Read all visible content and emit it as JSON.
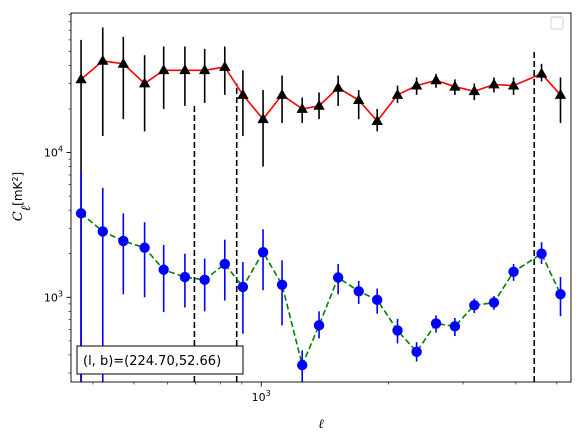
{
  "chart_data": {
    "type": "line",
    "xscale": "log",
    "yscale": "log",
    "xlim": [
      355,
      5400
    ],
    "ylim": [
      260,
      92000
    ],
    "xlabel": "ℓ",
    "ylabel_main": "C",
    "ylabel_sub": "ℓ",
    "ylabel_unit": "[mK",
    "ylabel_unit_sup": "2",
    "ylabel_unit_end": "]",
    "x_ticks": [
      {
        "value": 1000,
        "base": "10",
        "exp": "3"
      }
    ],
    "y_ticks": [
      {
        "value": 1000,
        "base": "10",
        "exp": "3"
      },
      {
        "value": 10000,
        "base": "10",
        "exp": "4"
      }
    ],
    "legend": {
      "placement": "top-right",
      "entries": []
    },
    "grid": false,
    "vlines": [
      {
        "x": 695,
        "ymin": 260,
        "ymax": 21000,
        "color": "#000000",
        "style": "dashed"
      },
      {
        "x": 875,
        "ymin": 260,
        "ymax": 30000,
        "color": "#000000",
        "style": "dashed"
      },
      {
        "x": 4420,
        "ymin": 260,
        "ymax": 52000,
        "color": "#000000",
        "style": "dashed"
      }
    ],
    "series": [
      {
        "line_color": "#ff0000",
        "line_style": "solid",
        "marker": "triangle",
        "marker_color": "#000000",
        "err_color": "#000000",
        "points": [
          {
            "x": 375,
            "y": 32000,
            "lo": 260,
            "hi": 60000
          },
          {
            "x": 422,
            "y": 43000,
            "lo": 13000,
            "hi": 73000
          },
          {
            "x": 472,
            "y": 41000,
            "lo": 17000,
            "hi": 63000
          },
          {
            "x": 530,
            "y": 30000,
            "lo": 14000,
            "hi": 47000
          },
          {
            "x": 588,
            "y": 37000,
            "lo": 20000,
            "hi": 54000
          },
          {
            "x": 660,
            "y": 37000,
            "lo": 21000,
            "hi": 54000
          },
          {
            "x": 735,
            "y": 37000,
            "lo": 22000,
            "hi": 52000
          },
          {
            "x": 820,
            "y": 39000,
            "lo": 25000,
            "hi": 54000
          },
          {
            "x": 905,
            "y": 25000,
            "lo": 13000,
            "hi": 37000
          },
          {
            "x": 1010,
            "y": 17000,
            "lo": 8000,
            "hi": 27000
          },
          {
            "x": 1120,
            "y": 25000,
            "lo": 16000,
            "hi": 34000
          },
          {
            "x": 1250,
            "y": 20000,
            "lo": 16000,
            "hi": 24000
          },
          {
            "x": 1370,
            "y": 21000,
            "lo": 17000,
            "hi": 26000
          },
          {
            "x": 1520,
            "y": 28000,
            "lo": 21000,
            "hi": 34000
          },
          {
            "x": 1700,
            "y": 23000,
            "lo": 17000,
            "hi": 27000
          },
          {
            "x": 1880,
            "y": 16500,
            "lo": 14000,
            "hi": 20000
          },
          {
            "x": 2100,
            "y": 25000,
            "lo": 22000,
            "hi": 29000
          },
          {
            "x": 2330,
            "y": 29000,
            "lo": 25000,
            "hi": 33000
          },
          {
            "x": 2590,
            "y": 31500,
            "lo": 28000,
            "hi": 35000
          },
          {
            "x": 2870,
            "y": 28500,
            "lo": 25000,
            "hi": 32000
          },
          {
            "x": 3190,
            "y": 26500,
            "lo": 23000,
            "hi": 30000
          },
          {
            "x": 3550,
            "y": 29500,
            "lo": 26000,
            "hi": 33000
          },
          {
            "x": 3950,
            "y": 29000,
            "lo": 25000,
            "hi": 33000
          },
          {
            "x": 4600,
            "y": 35000,
            "lo": 31000,
            "hi": 41000
          },
          {
            "x": 5100,
            "y": 25000,
            "lo": 16000,
            "hi": 33000
          }
        ]
      },
      {
        "line_color": "#008000",
        "line_style": "dashed",
        "marker": "circle",
        "marker_color": "#0000ff",
        "err_color": "#0000ff",
        "points": [
          {
            "x": 375,
            "y": 3800,
            "lo": 260,
            "hi": 7300
          },
          {
            "x": 422,
            "y": 2850,
            "lo": 260,
            "hi": 5700
          },
          {
            "x": 472,
            "y": 2450,
            "lo": 1050,
            "hi": 3800
          },
          {
            "x": 530,
            "y": 2200,
            "lo": 1000,
            "hi": 3300
          },
          {
            "x": 588,
            "y": 1550,
            "lo": 790,
            "hi": 2300
          },
          {
            "x": 660,
            "y": 1380,
            "lo": 850,
            "hi": 2000
          },
          {
            "x": 735,
            "y": 1320,
            "lo": 800,
            "hi": 1850
          },
          {
            "x": 820,
            "y": 1700,
            "lo": 950,
            "hi": 2500
          },
          {
            "x": 905,
            "y": 1180,
            "lo": 560,
            "hi": 1750
          },
          {
            "x": 1010,
            "y": 2050,
            "lo": 1120,
            "hi": 2950
          },
          {
            "x": 1120,
            "y": 1220,
            "lo": 640,
            "hi": 1800
          },
          {
            "x": 1250,
            "y": 340,
            "lo": 260,
            "hi": 430
          },
          {
            "x": 1370,
            "y": 640,
            "lo": 520,
            "hi": 800
          },
          {
            "x": 1520,
            "y": 1370,
            "lo": 1050,
            "hi": 1700
          },
          {
            "x": 1700,
            "y": 1100,
            "lo": 900,
            "hi": 1300
          },
          {
            "x": 1880,
            "y": 960,
            "lo": 770,
            "hi": 1150
          },
          {
            "x": 2100,
            "y": 590,
            "lo": 480,
            "hi": 710
          },
          {
            "x": 2330,
            "y": 420,
            "lo": 360,
            "hi": 490
          },
          {
            "x": 2590,
            "y": 660,
            "lo": 570,
            "hi": 750
          },
          {
            "x": 2870,
            "y": 630,
            "lo": 540,
            "hi": 720
          },
          {
            "x": 3190,
            "y": 880,
            "lo": 780,
            "hi": 980
          },
          {
            "x": 3550,
            "y": 920,
            "lo": 820,
            "hi": 1020
          },
          {
            "x": 3950,
            "y": 1500,
            "lo": 1300,
            "hi": 1700
          },
          {
            "x": 4600,
            "y": 2000,
            "lo": 1700,
            "hi": 2400
          },
          {
            "x": 5100,
            "y": 1050,
            "lo": 740,
            "hi": 1380
          }
        ]
      }
    ],
    "annotation": {
      "text": "(l, b)=(224.70,52.66)",
      "placement": "bottom-left"
    }
  }
}
